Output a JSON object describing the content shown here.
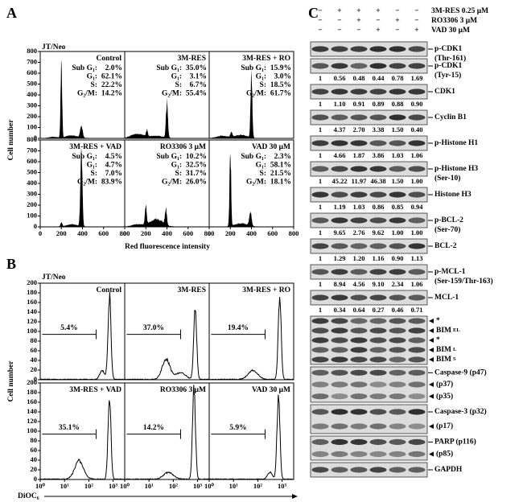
{
  "panel_a": {
    "label": "A",
    "cell_line": "JT/Neo",
    "y_axis_label": "Cell number",
    "x_axis_label": "Red fluorescence intensity",
    "ylim": [
      0,
      800
    ],
    "yticks": [
      0,
      100,
      200,
      300,
      400,
      500,
      600,
      700,
      800
    ],
    "xlim": [
      0,
      800
    ],
    "xticks": [
      0,
      200,
      400,
      600,
      800
    ],
    "phase_labels": [
      "Sub G₁:",
      "G₁:",
      "S:",
      "G₂/M:"
    ],
    "plots": [
      {
        "title": "Control",
        "percentages": [
          "2.0%",
          "62.1%",
          "22.2%",
          "14.2%"
        ]
      },
      {
        "title": "3M-RES",
        "percentages": [
          "35.0%",
          "3.1%",
          "6.7%",
          "55.4%"
        ]
      },
      {
        "title": "3M-RES + RO",
        "percentages": [
          "15.9%",
          "3.0%",
          "18.5%",
          "61.7%"
        ]
      },
      {
        "title": "3M-RES + VAD",
        "percentages": [
          "4.5%",
          "4.7%",
          "7.0%",
          "83.9%"
        ]
      },
      {
        "title": "RO3306 3 μM",
        "percentages": [
          "10.2%",
          "32.5%",
          "31.7%",
          "26.0%"
        ]
      },
      {
        "title": "VAD 30 μM",
        "percentages": [
          "2.3%",
          "58.1%",
          "21.5%",
          "18.1%"
        ]
      }
    ]
  },
  "panel_b": {
    "label": "B",
    "cell_line": "JT/Neo",
    "y_axis_label": "Cell number",
    "x_axis_label": "DiOC₆",
    "ylim": [
      0,
      200
    ],
    "yticks": [
      0,
      20,
      40,
      60,
      80,
      100,
      120,
      140,
      160,
      180,
      200
    ],
    "xscale": "log",
    "xlim": [
      1,
      3000
    ],
    "xticks": [
      {
        "value": 1,
        "label": "10⁰"
      },
      {
        "value": 10,
        "label": "10¹"
      },
      {
        "value": 100,
        "label": "10²"
      },
      {
        "value": 1000,
        "label": "10³"
      }
    ],
    "plots": [
      {
        "title": "Control",
        "percentage": "5.4%"
      },
      {
        "title": "3M-RES",
        "percentage": "37.0%"
      },
      {
        "title": "3M-RES + RO",
        "percentage": "19.4%"
      },
      {
        "title": "3M-RES + VAD",
        "percentage": "35.1%"
      },
      {
        "title": "RO3306 3 μM",
        "percentage": "14.2%"
      },
      {
        "title": "VAD 30 μM",
        "percentage": "5.9%"
      }
    ]
  },
  "panel_c": {
    "label": "C",
    "treatments": [
      {
        "name": "3M-RES 0.25 μM",
        "lanes": [
          "−",
          "+",
          "+",
          "+",
          "−",
          "−"
        ]
      },
      {
        "name": "RO3306 3 μM",
        "lanes": [
          "−",
          "−",
          "+",
          "−",
          "+",
          "−"
        ]
      },
      {
        "name": "VAD 30 μM",
        "lanes": [
          "−",
          "−",
          "−",
          "+",
          "−",
          "+"
        ]
      }
    ],
    "blots": [
      {
        "name": "p-CDK1",
        "detail": "(Thr-161)"
      },
      {
        "name": "p-CDK1",
        "detail": "(Tyr-15)",
        "quant": [
          "1",
          "0.56",
          "0.48",
          "0.44",
          "0.78",
          "1.69"
        ]
      },
      {
        "name": "CDK1",
        "quant": [
          "1",
          "1.10",
          "0.91",
          "0.89",
          "0.88",
          "0.90"
        ]
      },
      {
        "name": "Cyclin B1",
        "quant": [
          "1",
          "4.37",
          "2.70",
          "3.38",
          "1.50",
          "0.40"
        ]
      },
      {
        "name": "p-Histone H1",
        "quant": [
          "1",
          "4.66",
          "1.87",
          "3.86",
          "1.03",
          "1.06"
        ]
      },
      {
        "name": "p-Histone H3",
        "detail": "(Ser-10)",
        "quant": [
          "1",
          "45.22",
          "11.97",
          "46.38",
          "1.50",
          "1.00"
        ]
      },
      {
        "name": "Histone H3",
        "quant": [
          "1",
          "1.19",
          "1.03",
          "0.86",
          "0.85",
          "0.94"
        ]
      },
      {
        "name": "p-BCL-2",
        "detail": "(Ser-70)",
        "quant": [
          "1",
          "9.65",
          "2.76",
          "9.62",
          "1.00",
          "1.00"
        ]
      },
      {
        "name": "BCL-2",
        "quant": [
          "1",
          "1.29",
          "1.20",
          "1.16",
          "0.90",
          "1.13"
        ]
      },
      {
        "name": "p-MCL-1",
        "detail": "(Ser-159/Thr-163)",
        "quant": [
          "1",
          "8.94",
          "4.56",
          "9.10",
          "2.34",
          "1.06"
        ]
      },
      {
        "name": "MCL-1",
        "quant": [
          "1",
          "0.34",
          "0.64",
          "0.27",
          "0.46",
          "0.71"
        ]
      },
      {
        "bands": [
          "*",
          {
            "text": "BIM",
            "sub": "EL"
          },
          "*",
          {
            "text": "BIM",
            "sub": "L"
          },
          {
            "text": "BIM",
            "sub": "S"
          }
        ]
      },
      {
        "name": "Caspase-9 (p47)",
        "bands": [
          "(p37)",
          "(p35)"
        ]
      },
      {
        "name": "Caspase-3 (p32)",
        "bands": [
          "(p17)"
        ]
      },
      {
        "name": "PARP (p116)",
        "bands": [
          "(p85)"
        ]
      },
      {
        "name": "GAPDH"
      }
    ]
  }
}
